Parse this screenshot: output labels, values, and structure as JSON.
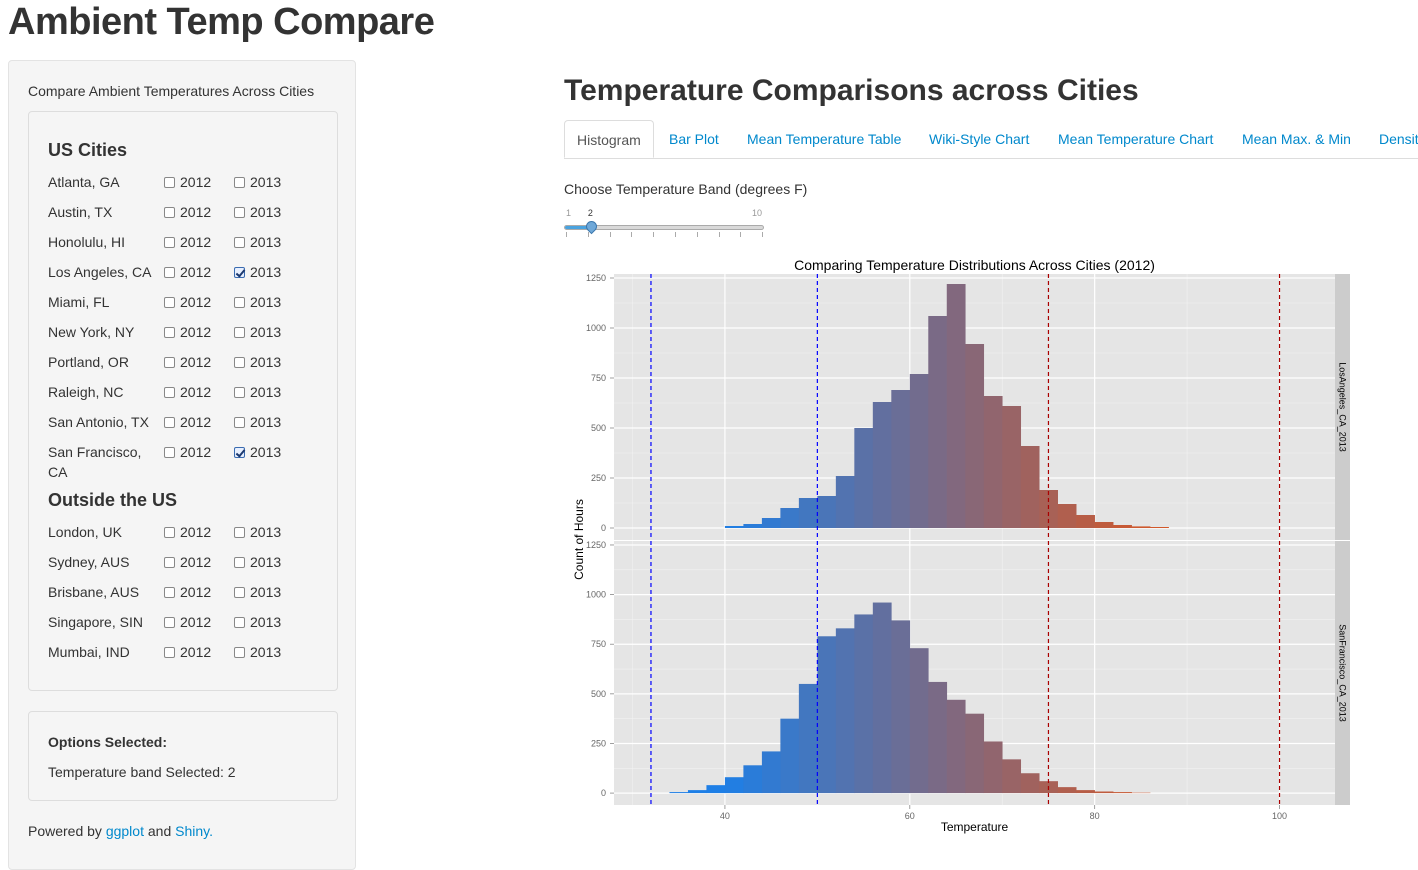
{
  "app": {
    "title": "Ambient Temp Compare"
  },
  "sidebar": {
    "intro": "Compare Ambient Temperatures Across Cities",
    "us_heading": "US Cities",
    "outside_heading": "Outside the US",
    "us_cities": [
      {
        "name": "Atlanta, GA",
        "y2012": false,
        "y2013": false
      },
      {
        "name": "Austin, TX",
        "y2012": false,
        "y2013": false
      },
      {
        "name": "Honolulu, HI",
        "y2012": false,
        "y2013": false
      },
      {
        "name": "Los Angeles, CA",
        "y2012": false,
        "y2013": true
      },
      {
        "name": "Miami, FL",
        "y2012": false,
        "y2013": false
      },
      {
        "name": "New York, NY",
        "y2012": false,
        "y2013": false
      },
      {
        "name": "Portland, OR",
        "y2012": false,
        "y2013": false
      },
      {
        "name": "Raleigh, NC",
        "y2012": false,
        "y2013": false
      },
      {
        "name": "San Antonio, TX",
        "y2012": false,
        "y2013": false
      },
      {
        "name": "San Francisco, CA",
        "y2012": false,
        "y2013": true
      }
    ],
    "outside_cities": [
      {
        "name": "London, UK",
        "y2012": false,
        "y2013": false
      },
      {
        "name": "Sydney, AUS",
        "y2012": false,
        "y2013": false
      },
      {
        "name": "Brisbane, AUS",
        "y2012": false,
        "y2013": false
      },
      {
        "name": "Singapore, SIN",
        "y2012": false,
        "y2013": false
      },
      {
        "name": "Mumbai, IND",
        "y2012": false,
        "y2013": false
      }
    ],
    "year1_label": "2012",
    "year2_label": "2013",
    "options_title": "Options Selected:",
    "band_selected": "Temperature band Selected: 2",
    "powered_prefix": "Powered by",
    "powered_link1": "ggplot",
    "powered_and": "and",
    "powered_link2": "Shiny."
  },
  "main": {
    "title": "Temperature Comparisons across Cities",
    "tabs": [
      "Histogram",
      "Bar Plot",
      "Mean Temperature Table",
      "Wiki-Style Chart",
      "Mean Temperature Chart",
      "Mean Max. & Min",
      "Densit"
    ],
    "active_tab": 0,
    "slider": {
      "label": "Choose Temperature Band (degrees F)",
      "min": 1,
      "max": 10,
      "value": 2,
      "min_label": "1",
      "max_label": "10",
      "value_label": "2"
    }
  },
  "chart_data": {
    "type": "bar",
    "title": "Comparing Temperature Distributions Across Cities (2012)",
    "xlabel": "Temperature",
    "ylabel": "Count of Hours",
    "xlim": [
      28,
      106
    ],
    "ylim": [
      -60,
      1270
    ],
    "x_ticks": [
      40,
      60,
      80,
      100
    ],
    "x_tick_labels": [
      "40",
      "60",
      "80",
      "100"
    ],
    "y_ticks": [
      0,
      250,
      500,
      750,
      1000,
      1250
    ],
    "y_tick_labels": [
      "0",
      "250",
      "500",
      "750",
      "1000",
      "1250"
    ],
    "bin_width": 2,
    "color_low": "#1e7fe6",
    "color_mid": "#7a6a86",
    "color_high": "#d2582a",
    "vlines": [
      {
        "x": 32,
        "color": "#0000ff"
      },
      {
        "x": 50,
        "color": "#0000ff"
      },
      {
        "x": 75,
        "color": "#aa0000"
      },
      {
        "x": 100,
        "color": "#aa0000"
      }
    ],
    "panels": [
      {
        "strip": "LosAngeles_CA_2013",
        "bins_start": 40,
        "values": [
          10,
          20,
          50,
          100,
          150,
          160,
          260,
          500,
          630,
          690,
          770,
          1060,
          1220,
          920,
          660,
          610,
          410,
          190,
          120,
          65,
          30,
          15,
          8,
          5
        ]
      },
      {
        "strip": "SanFrancisco_CA_2013",
        "bins_start": 34,
        "values": [
          5,
          15,
          40,
          80,
          140,
          210,
          375,
          550,
          790,
          830,
          900,
          960,
          870,
          730,
          560,
          470,
          400,
          260,
          170,
          100,
          60,
          30,
          15,
          8,
          5,
          2
        ]
      }
    ]
  }
}
